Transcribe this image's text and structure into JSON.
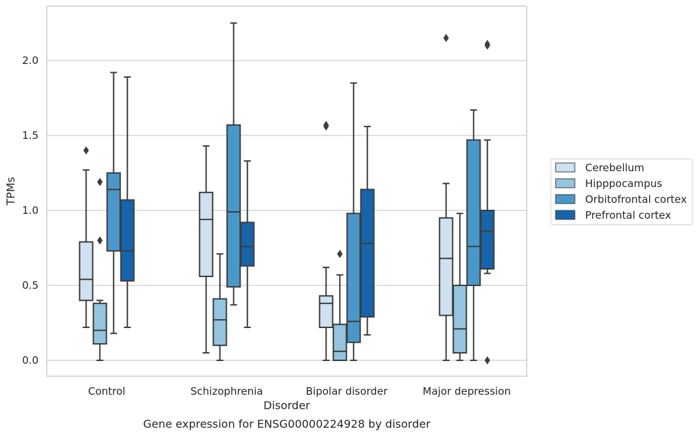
{
  "chart_data": {
    "type": "box",
    "title": "",
    "caption": "Gene expression for ENSG00000224928 by disorder",
    "xlabel": "Disorder",
    "ylabel": "TPMs",
    "ylim": [
      -0.11,
      2.37
    ],
    "yticks": [
      "0.0",
      "0.5",
      "1.0",
      "1.5",
      "2.0"
    ],
    "grid": "horizontal",
    "legend_position": "right",
    "categories": [
      "Control",
      "Schizophrenia",
      "Bipolar disorder",
      "Major depression"
    ],
    "series": [
      {
        "name": "Cerebellum",
        "color": "#d0e1f1",
        "boxes": [
          {
            "whisker_low": 0.22,
            "q1": 0.4,
            "median": 0.54,
            "q3": 0.79,
            "whisker_high": 1.27,
            "outliers": [
              1.4
            ]
          },
          {
            "whisker_low": 0.05,
            "q1": 0.56,
            "median": 0.94,
            "q3": 1.12,
            "whisker_high": 1.43,
            "outliers": []
          },
          {
            "whisker_low": 0.0,
            "q1": 0.22,
            "median": 0.38,
            "q3": 0.43,
            "whisker_high": 0.62,
            "outliers": [
              1.56,
              1.57
            ]
          },
          {
            "whisker_low": 0.0,
            "q1": 0.3,
            "median": 0.68,
            "q3": 0.95,
            "whisker_high": 1.18,
            "outliers": [
              2.15
            ]
          }
        ]
      },
      {
        "name": "Hipppocampus",
        "color": "#94c4df",
        "boxes": [
          {
            "whisker_low": 0.0,
            "q1": 0.11,
            "median": 0.2,
            "q3": 0.38,
            "whisker_high": 0.4,
            "outliers": [
              0.8,
              1.19
            ]
          },
          {
            "whisker_low": 0.0,
            "q1": 0.1,
            "median": 0.27,
            "q3": 0.41,
            "whisker_high": 0.71,
            "outliers": []
          },
          {
            "whisker_low": 0.0,
            "q1": 0.0,
            "median": 0.06,
            "q3": 0.24,
            "whisker_high": 0.57,
            "outliers": [
              0.71
            ]
          },
          {
            "whisker_low": 0.0,
            "q1": 0.05,
            "median": 0.21,
            "q3": 0.5,
            "whisker_high": 0.98,
            "outliers": []
          }
        ]
      },
      {
        "name": "Orbitofrontal cortex",
        "color": "#4a98c9",
        "boxes": [
          {
            "whisker_low": 0.18,
            "q1": 0.73,
            "median": 1.14,
            "q3": 1.25,
            "whisker_high": 1.92,
            "outliers": []
          },
          {
            "whisker_low": 0.37,
            "q1": 0.49,
            "median": 0.99,
            "q3": 1.57,
            "whisker_high": 2.25,
            "outliers": []
          },
          {
            "whisker_low": 0.0,
            "q1": 0.12,
            "median": 0.26,
            "q3": 0.98,
            "whisker_high": 1.85,
            "outliers": []
          },
          {
            "whisker_low": 0.0,
            "q1": 0.5,
            "median": 0.76,
            "q3": 1.47,
            "whisker_high": 1.67,
            "outliers": []
          }
        ]
      },
      {
        "name": "Prefrontal cortex",
        "color": "#1764ab",
        "boxes": [
          {
            "whisker_low": 0.22,
            "q1": 0.53,
            "median": 0.73,
            "q3": 1.07,
            "whisker_high": 1.89,
            "outliers": []
          },
          {
            "whisker_low": 0.22,
            "q1": 0.63,
            "median": 0.76,
            "q3": 0.92,
            "whisker_high": 1.33,
            "outliers": []
          },
          {
            "whisker_low": 0.17,
            "q1": 0.29,
            "median": 0.78,
            "q3": 1.14,
            "whisker_high": 1.56,
            "outliers": []
          },
          {
            "whisker_low": 0.58,
            "q1": 0.61,
            "median": 0.86,
            "q3": 1.0,
            "whisker_high": 1.47,
            "outliers": [
              0.0,
              2.1,
              2.11
            ]
          }
        ]
      }
    ]
  }
}
